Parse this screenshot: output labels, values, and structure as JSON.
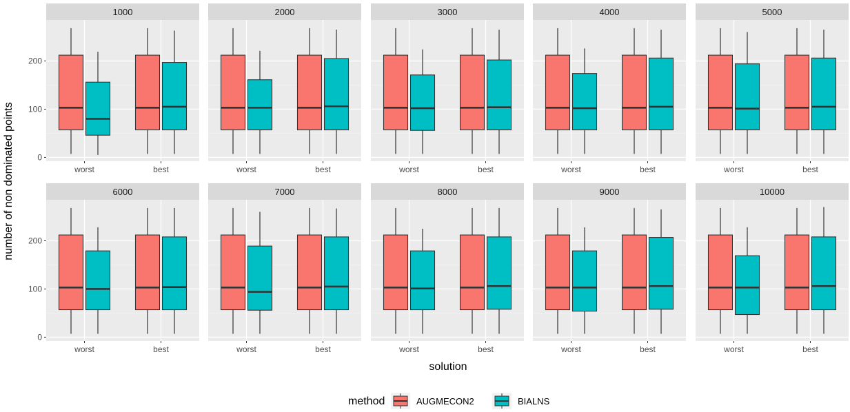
{
  "chart_data": {
    "type": "boxplot",
    "xlabel": "solution",
    "ylabel": "number of non dominated points",
    "categories": [
      "worst",
      "best"
    ],
    "yticks": [
      0,
      100,
      200
    ],
    "ylim": [
      -8,
      285
    ],
    "grid": true,
    "legend": {
      "title": "method",
      "placement": "bottom",
      "entries": [
        "AUGMECON2",
        "BIALNS"
      ]
    },
    "colors": {
      "AUGMECON2": "#F8766D",
      "BIALNS": "#00BFC4"
    },
    "panels": [
      {
        "label": "1000",
        "boxes": {
          "AUGMECON2": {
            "worst": [
              7,
              57,
              103,
              212,
              268
            ],
            "best": [
              7,
              57,
              103,
              212,
              268
            ]
          },
          "BIALNS": {
            "worst": [
              5,
              46,
              80,
              156,
              219
            ],
            "best": [
              7,
              57,
              105,
              197,
              263
            ]
          }
        }
      },
      {
        "label": "2000",
        "boxes": {
          "AUGMECON2": {
            "worst": [
              7,
              57,
              103,
              212,
              268
            ],
            "best": [
              7,
              57,
              103,
              212,
              268
            ]
          },
          "BIALNS": {
            "worst": [
              7,
              57,
              103,
              161,
              221
            ],
            "best": [
              7,
              57,
              106,
              205,
              265
            ]
          }
        }
      },
      {
        "label": "3000",
        "boxes": {
          "AUGMECON2": {
            "worst": [
              7,
              57,
              103,
              212,
              268
            ],
            "best": [
              7,
              57,
              103,
              212,
              268
            ]
          },
          "BIALNS": {
            "worst": [
              7,
              56,
              102,
              171,
              224
            ],
            "best": [
              7,
              57,
              104,
              202,
              265
            ]
          }
        }
      },
      {
        "label": "4000",
        "boxes": {
          "AUGMECON2": {
            "worst": [
              7,
              57,
              103,
              212,
              268
            ],
            "best": [
              7,
              57,
              103,
              212,
              268
            ]
          },
          "BIALNS": {
            "worst": [
              7,
              57,
              102,
              174,
              226
            ],
            "best": [
              7,
              57,
              105,
              206,
              265
            ]
          }
        }
      },
      {
        "label": "5000",
        "boxes": {
          "AUGMECON2": {
            "worst": [
              7,
              57,
              103,
              212,
              268
            ],
            "best": [
              7,
              57,
              103,
              212,
              268
            ]
          },
          "BIALNS": {
            "worst": [
              7,
              57,
              101,
              194,
              260
            ],
            "best": [
              7,
              57,
              105,
              206,
              265
            ]
          }
        }
      },
      {
        "label": "6000",
        "boxes": {
          "AUGMECON2": {
            "worst": [
              7,
              57,
              103,
              212,
              268
            ],
            "best": [
              7,
              57,
              103,
              212,
              268
            ]
          },
          "BIALNS": {
            "worst": [
              7,
              57,
              100,
              179,
              228
            ],
            "best": [
              7,
              57,
              104,
              208,
              268
            ]
          }
        }
      },
      {
        "label": "7000",
        "boxes": {
          "AUGMECON2": {
            "worst": [
              7,
              57,
              103,
              212,
              268
            ],
            "best": [
              7,
              57,
              103,
              212,
              268
            ]
          },
          "BIALNS": {
            "worst": [
              7,
              56,
              94,
              189,
              260
            ],
            "best": [
              7,
              57,
              105,
              208,
              267
            ]
          }
        }
      },
      {
        "label": "8000",
        "boxes": {
          "AUGMECON2": {
            "worst": [
              7,
              57,
              103,
              212,
              268
            ],
            "best": [
              7,
              57,
              103,
              212,
              268
            ]
          },
          "BIALNS": {
            "worst": [
              7,
              57,
              101,
              179,
              225
            ],
            "best": [
              7,
              58,
              106,
              208,
              268
            ]
          }
        }
      },
      {
        "label": "9000",
        "boxes": {
          "AUGMECON2": {
            "worst": [
              7,
              57,
              103,
              212,
              268
            ],
            "best": [
              7,
              57,
              103,
              212,
              268
            ]
          },
          "BIALNS": {
            "worst": [
              7,
              54,
              103,
              179,
              228
            ],
            "best": [
              7,
              58,
              106,
              207,
              265
            ]
          }
        }
      },
      {
        "label": "10000",
        "boxes": {
          "AUGMECON2": {
            "worst": [
              7,
              57,
              103,
              212,
              268
            ],
            "best": [
              7,
              57,
              103,
              212,
              268
            ]
          },
          "BIALNS": {
            "worst": [
              7,
              47,
              103,
              169,
              228
            ],
            "best": [
              7,
              57,
              106,
              208,
              270
            ]
          }
        }
      }
    ]
  }
}
